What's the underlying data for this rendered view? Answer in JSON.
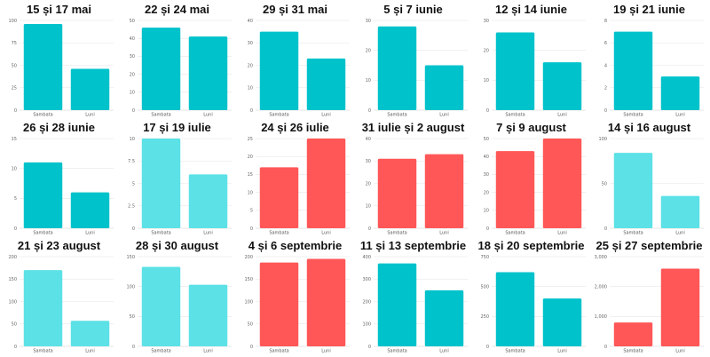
{
  "colors": {
    "teal": "#00c2cb",
    "light": "#5ce1e6",
    "red": "#ff5757",
    "grid": "#e6e6e6",
    "axis": "#cccccc"
  },
  "chart_data": [
    {
      "type": "bar",
      "title": "15 și 17 mai",
      "categories": [
        "Sambata",
        "Luni"
      ],
      "values": [
        96,
        46
      ],
      "ylim": [
        0,
        100
      ],
      "yticks": [
        "0",
        "25",
        "50",
        "75",
        "100"
      ],
      "color": "teal"
    },
    {
      "type": "bar",
      "title": "22 și 24 mai",
      "categories": [
        "Sambata",
        "Luni"
      ],
      "values": [
        46,
        41
      ],
      "ylim": [
        0,
        50
      ],
      "yticks": [
        "0",
        "10",
        "20",
        "30",
        "40",
        "50"
      ],
      "color": "teal"
    },
    {
      "type": "bar",
      "title": "29 și 31 mai",
      "categories": [
        "Sambata",
        "Luni"
      ],
      "values": [
        35,
        23
      ],
      "ylim": [
        0,
        40
      ],
      "yticks": [
        "0",
        "10",
        "20",
        "30",
        "40"
      ],
      "color": "teal"
    },
    {
      "type": "bar",
      "title": "5 și 7 iunie",
      "categories": [
        "Sambata",
        "Luni"
      ],
      "values": [
        28,
        15
      ],
      "ylim": [
        0,
        30
      ],
      "yticks": [
        "0",
        "10",
        "20",
        "30"
      ],
      "color": "teal"
    },
    {
      "type": "bar",
      "title": "12 și 14 iunie",
      "categories": [
        "Sambata",
        "Luni"
      ],
      "values": [
        26,
        16
      ],
      "ylim": [
        0,
        30
      ],
      "yticks": [
        "0",
        "10",
        "20",
        "30"
      ],
      "color": "teal"
    },
    {
      "type": "bar",
      "title": "19 și 21 iunie",
      "categories": [
        "Sambata",
        "Luni"
      ],
      "values": [
        7,
        3
      ],
      "ylim": [
        0,
        8
      ],
      "yticks": [
        "0",
        "2",
        "4",
        "6",
        "8"
      ],
      "color": "teal"
    },
    {
      "type": "bar",
      "title": "26 și 28 iunie",
      "categories": [
        "Sambata",
        "Luni"
      ],
      "values": [
        11,
        6
      ],
      "ylim": [
        0,
        15
      ],
      "yticks": [
        "0",
        "5",
        "10",
        "15"
      ],
      "color": "teal"
    },
    {
      "type": "bar",
      "title": "17 și 19 iulie",
      "categories": [
        "Sambata",
        "Luni"
      ],
      "values": [
        10,
        6
      ],
      "ylim": [
        0,
        10
      ],
      "yticks": [
        "0",
        "2.5",
        "5",
        "7.5",
        "10"
      ],
      "color": "light"
    },
    {
      "type": "bar",
      "title": "24 și 26 iulie",
      "categories": [
        "Sambata",
        "Luni"
      ],
      "values": [
        17,
        25
      ],
      "ylim": [
        0,
        25
      ],
      "yticks": [
        "0",
        "5",
        "10",
        "15",
        "20",
        "25"
      ],
      "color": "red"
    },
    {
      "type": "bar",
      "title": "31 iulie și 2 august",
      "categories": [
        "Sambata",
        "Luni"
      ],
      "values": [
        31,
        33
      ],
      "ylim": [
        0,
        40
      ],
      "yticks": [
        "0",
        "10",
        "20",
        "30",
        "40"
      ],
      "color": "red"
    },
    {
      "type": "bar",
      "title": "7 și 9 august",
      "categories": [
        "Sambata",
        "Luni"
      ],
      "values": [
        43,
        50
      ],
      "ylim": [
        0,
        50
      ],
      "yticks": [
        "0",
        "10",
        "20",
        "30",
        "40",
        "50"
      ],
      "color": "red"
    },
    {
      "type": "bar",
      "title": "14 și 16 august",
      "categories": [
        "Sambata",
        "Luni"
      ],
      "values": [
        84,
        36
      ],
      "ylim": [
        0,
        100
      ],
      "yticks": [
        "0",
        "50",
        "100"
      ],
      "color": "light"
    },
    {
      "type": "bar",
      "title": "21 și 23 august",
      "categories": [
        "Sambata",
        "Luni"
      ],
      "values": [
        170,
        57
      ],
      "ylim": [
        0,
        200
      ],
      "yticks": [
        "0",
        "50",
        "100",
        "150",
        "200"
      ],
      "color": "light"
    },
    {
      "type": "bar",
      "title": "28 și 30 august",
      "categories": [
        "Sambata",
        "Luni"
      ],
      "values": [
        133,
        103
      ],
      "ylim": [
        0,
        150
      ],
      "yticks": [
        "0",
        "50",
        "100",
        "150"
      ],
      "color": "light"
    },
    {
      "type": "bar",
      "title": "4 și 6 septembrie",
      "categories": [
        "Sambata",
        "Luni"
      ],
      "values": [
        187,
        195
      ],
      "ylim": [
        0,
        200
      ],
      "yticks": [
        "0",
        "50",
        "100",
        "150",
        "200"
      ],
      "color": "red"
    },
    {
      "type": "bar",
      "title": "11 și 13 septembrie",
      "categories": [
        "Sambata",
        "Luni"
      ],
      "values": [
        370,
        250
      ],
      "ylim": [
        0,
        400
      ],
      "yticks": [
        "0",
        "100",
        "200",
        "300",
        "400"
      ],
      "color": "teal"
    },
    {
      "type": "bar",
      "title": "18 și 20 septembrie",
      "categories": [
        "Sambata",
        "Luni"
      ],
      "values": [
        620,
        400
      ],
      "ylim": [
        0,
        750
      ],
      "yticks": [
        "0",
        "250",
        "500",
        "750"
      ],
      "color": "teal"
    },
    {
      "type": "bar",
      "title": "25 și 27 septembrie",
      "categories": [
        "Sambata",
        "Luni"
      ],
      "values": [
        800,
        2600
      ],
      "ylim": [
        0,
        3000
      ],
      "yticks": [
        "0",
        "1,000",
        "2,000",
        "3,000"
      ],
      "color": "red"
    }
  ]
}
